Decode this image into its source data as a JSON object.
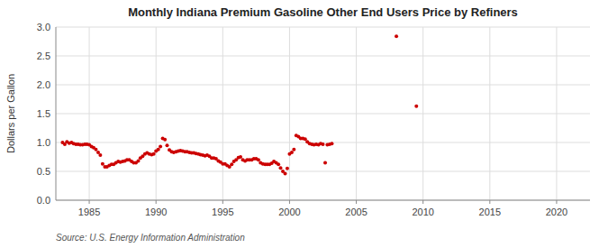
{
  "chart_data": {
    "type": "scatter",
    "title": "Monthly Indiana Premium Gasoline Other End Users Price by Refiners",
    "ylabel": "Dollars per Gallon",
    "source": "Source: U.S. Energy Information Administration",
    "color": "#cc0000",
    "grid": true,
    "xlim": [
      1982.5,
      2022.5
    ],
    "ylim": [
      0.0,
      3.0
    ],
    "xticks": [
      1985,
      1990,
      1995,
      2000,
      2005,
      2010,
      2015,
      2020
    ],
    "yticks": [
      {
        "value": 0.0,
        "label": "0.0"
      },
      0.5,
      {
        "value": 1.0,
        "label": "1.0"
      },
      1.5,
      {
        "value": 2.0,
        "label": "2.0"
      },
      2.5,
      {
        "value": 3.0,
        "label": "3.0"
      }
    ],
    "x": [
      1983.0,
      1983.17,
      1983.33,
      1983.5,
      1983.67,
      1983.83,
      1984.0,
      1984.17,
      1984.33,
      1984.5,
      1984.67,
      1984.83,
      1985.0,
      1985.17,
      1985.33,
      1985.5,
      1985.67,
      1985.83,
      1986.0,
      1986.17,
      1986.33,
      1986.5,
      1986.67,
      1986.83,
      1987.0,
      1987.17,
      1987.33,
      1987.5,
      1987.67,
      1987.83,
      1988.0,
      1988.17,
      1988.33,
      1988.5,
      1988.67,
      1988.83,
      1989.0,
      1989.17,
      1989.33,
      1989.5,
      1989.67,
      1989.83,
      1990.0,
      1990.17,
      1990.33,
      1990.5,
      1990.67,
      1990.83,
      1991.0,
      1991.17,
      1991.33,
      1991.5,
      1991.67,
      1991.83,
      1992.0,
      1992.17,
      1992.33,
      1992.5,
      1992.67,
      1992.83,
      1993.0,
      1993.17,
      1993.33,
      1993.5,
      1993.67,
      1993.83,
      1994.0,
      1994.17,
      1994.33,
      1994.5,
      1994.67,
      1994.83,
      1995.0,
      1995.17,
      1995.33,
      1995.5,
      1995.67,
      1995.83,
      1996.0,
      1996.17,
      1996.33,
      1996.5,
      1996.67,
      1996.83,
      1997.0,
      1997.17,
      1997.33,
      1997.5,
      1997.67,
      1997.83,
      1998.0,
      1998.17,
      1998.33,
      1998.5,
      1998.67,
      1998.83,
      1999.0,
      1999.17,
      1999.33,
      1999.5,
      1999.67,
      1999.83,
      2000.0,
      2000.17,
      2000.33,
      2000.5,
      2000.67,
      2000.83,
      2001.0,
      2001.17,
      2001.33,
      2001.5,
      2001.67,
      2001.83,
      2002.0,
      2002.17,
      2002.33,
      2002.5,
      2002.67,
      2002.83,
      2003.0,
      2003.17,
      2008.0,
      2009.5
    ],
    "values": [
      1.0,
      0.97,
      1.01,
      0.99,
      1.0,
      0.98,
      0.97,
      0.97,
      0.96,
      0.96,
      0.97,
      0.97,
      0.96,
      0.93,
      0.91,
      0.88,
      0.83,
      0.78,
      0.63,
      0.58,
      0.58,
      0.6,
      0.62,
      0.62,
      0.65,
      0.67,
      0.66,
      0.67,
      0.68,
      0.7,
      0.7,
      0.67,
      0.65,
      0.65,
      0.68,
      0.73,
      0.76,
      0.8,
      0.82,
      0.8,
      0.79,
      0.8,
      0.85,
      0.88,
      0.93,
      1.07,
      1.05,
      0.95,
      0.87,
      0.84,
      0.83,
      0.84,
      0.85,
      0.86,
      0.85,
      0.84,
      0.84,
      0.83,
      0.82,
      0.82,
      0.81,
      0.8,
      0.79,
      0.78,
      0.77,
      0.78,
      0.76,
      0.73,
      0.73,
      0.72,
      0.68,
      0.66,
      0.63,
      0.63,
      0.6,
      0.58,
      0.62,
      0.67,
      0.7,
      0.74,
      0.75,
      0.7,
      0.68,
      0.7,
      0.7,
      0.7,
      0.72,
      0.72,
      0.7,
      0.65,
      0.63,
      0.62,
      0.62,
      0.62,
      0.64,
      0.67,
      0.65,
      0.62,
      0.56,
      0.5,
      0.46,
      0.55,
      0.8,
      0.83,
      0.88,
      1.12,
      1.1,
      1.07,
      1.07,
      1.06,
      1.01,
      0.98,
      0.97,
      0.96,
      0.97,
      0.96,
      0.98,
      0.97,
      0.65,
      0.96,
      0.97,
      0.98,
      2.84,
      1.63
    ]
  }
}
